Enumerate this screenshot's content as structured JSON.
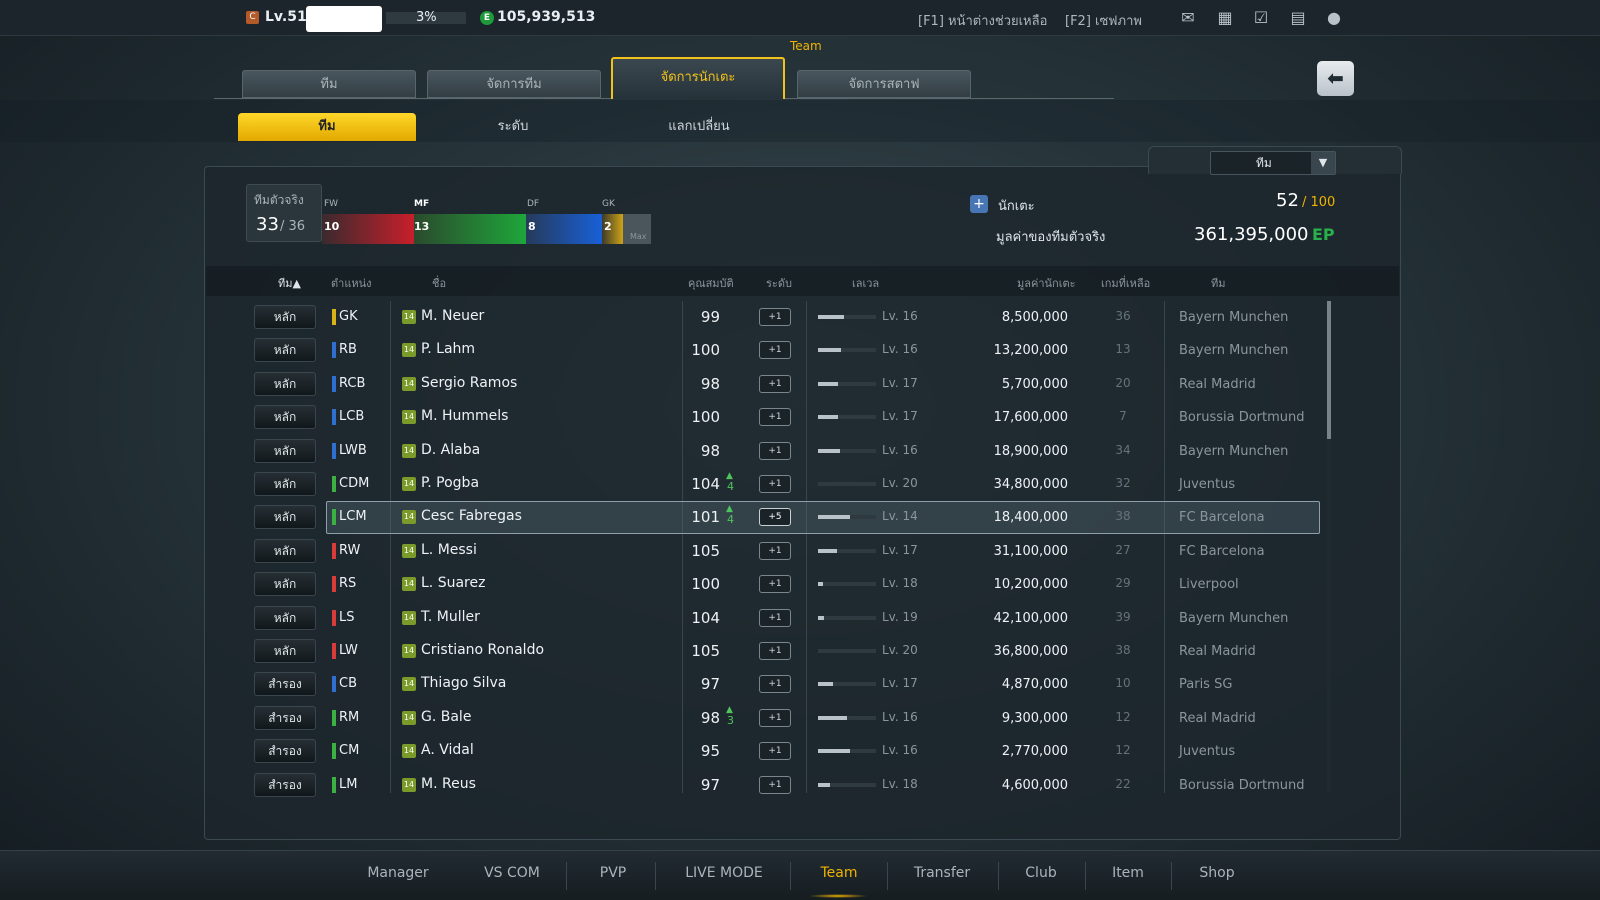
{
  "topbar": {
    "level": "Lv.51",
    "level_icon": "C",
    "exp_percent": "3%",
    "ep_icon": "E",
    "ep_balance": "105,939,513",
    "help_hint": "[F1] หน้าต่างช่วยเหลือ",
    "screenshot_hint": "[F2] เซฟภาพ"
  },
  "header": {
    "section": "Team",
    "tabs": [
      "ทีม",
      "จัดการทีม",
      "จัดการนักเตะ",
      "จัดการสตาฟ"
    ],
    "subtabs": [
      "ทีม",
      "ระดับ",
      "แลกเปลี่ยน"
    ],
    "back": "⬅"
  },
  "filter": {
    "selected": "ทีม",
    "arrow": "▼"
  },
  "summary": {
    "real_team_label": "ทีมตัวจริง",
    "real_count": "33",
    "real_max": "/ 36",
    "positions": [
      {
        "label": "FW",
        "count": "10"
      },
      {
        "label": "MF",
        "count": "13"
      },
      {
        "label": "DF",
        "count": "8"
      },
      {
        "label": "GK",
        "count": "2"
      }
    ],
    "max_label": "Max",
    "players_label": "นักเตะ",
    "players_count": "52",
    "players_max": "/ 100",
    "team_value_label": "มูลค่าของทีมตัวจริง",
    "team_value": "361,395,000",
    "team_value_unit": "EP"
  },
  "table": {
    "headers": {
      "team": "ทีม▲",
      "position": "ตำแหน่ง",
      "name": "ชื่อ",
      "ovr": "คุณสมบัติ",
      "grade": "ระดับ",
      "level": "เลเวล",
      "value": "มูลค่านักเตะ",
      "games": "เกมที่เหลือ",
      "club": "ทีม"
    },
    "rows": [
      {
        "role": "หลัก",
        "pos": "GK",
        "pos_color": "#d9b21a",
        "season": "14",
        "name": "M. Neuer",
        "ovr": "99",
        "boost": "",
        "grade": "+1",
        "lv_fill": 0.45,
        "level": "Lv. 16",
        "value": "8,500,000",
        "games": "36",
        "club": "Bayern Munchen"
      },
      {
        "role": "หลัก",
        "pos": "RB",
        "pos_color": "#2f6fd0",
        "season": "14",
        "name": "P. Lahm",
        "ovr": "100",
        "boost": "",
        "grade": "+1",
        "lv_fill": 0.4,
        "level": "Lv. 16",
        "value": "13,200,000",
        "games": "13",
        "club": "Bayern Munchen"
      },
      {
        "role": "หลัก",
        "pos": "RCB",
        "pos_color": "#2f6fd0",
        "season": "14",
        "name": "Sergio Ramos",
        "ovr": "98",
        "boost": "",
        "grade": "+1",
        "lv_fill": 0.35,
        "level": "Lv. 17",
        "value": "5,700,000",
        "games": "20",
        "club": "Real Madrid"
      },
      {
        "role": "หลัก",
        "pos": "LCB",
        "pos_color": "#2f6fd0",
        "season": "14",
        "name": "M. Hummels",
        "ovr": "100",
        "boost": "",
        "grade": "+1",
        "lv_fill": 0.35,
        "level": "Lv. 17",
        "value": "17,600,000",
        "games": "7",
        "club": "Borussia Dortmund"
      },
      {
        "role": "หลัก",
        "pos": "LWB",
        "pos_color": "#2f6fd0",
        "season": "14",
        "name": "D. Alaba",
        "ovr": "98",
        "boost": "",
        "grade": "+1",
        "lv_fill": 0.38,
        "level": "Lv. 16",
        "value": "18,900,000",
        "games": "34",
        "club": "Bayern Munchen"
      },
      {
        "role": "หลัก",
        "pos": "CDM",
        "pos_color": "#3cb043",
        "season": "14",
        "name": "P. Pogba",
        "ovr": "104",
        "boost": "4",
        "grade": "+1",
        "lv_fill": 0.0,
        "level": "Lv. 20",
        "value": "34,800,000",
        "games": "32",
        "club": "Juventus"
      },
      {
        "role": "หลัก",
        "pos": "LCM",
        "pos_color": "#3cb043",
        "season": "14",
        "name": "Cesc Fabregas",
        "ovr": "101",
        "boost": "4",
        "grade": "+5",
        "lv_fill": 0.55,
        "level": "Lv. 14",
        "value": "18,400,000",
        "games": "38",
        "club": "FC Barcelona",
        "selected": true
      },
      {
        "role": "หลัก",
        "pos": "RW",
        "pos_color": "#d93a3a",
        "season": "14",
        "name": "L. Messi",
        "ovr": "105",
        "boost": "",
        "grade": "+1",
        "lv_fill": 0.33,
        "level": "Lv. 17",
        "value": "31,100,000",
        "games": "27",
        "club": "FC Barcelona"
      },
      {
        "role": "หลัก",
        "pos": "RS",
        "pos_color": "#d93a3a",
        "season": "14",
        "name": "L. Suarez",
        "ovr": "100",
        "boost": "",
        "grade": "+1",
        "lv_fill": 0.08,
        "level": "Lv. 18",
        "value": "10,200,000",
        "games": "29",
        "club": "Liverpool"
      },
      {
        "role": "หลัก",
        "pos": "LS",
        "pos_color": "#d93a3a",
        "season": "14",
        "name": "T. Muller",
        "ovr": "104",
        "boost": "",
        "grade": "+1",
        "lv_fill": 0.1,
        "level": "Lv. 19",
        "value": "42,100,000",
        "games": "39",
        "club": "Bayern Munchen"
      },
      {
        "role": "หลัก",
        "pos": "LW",
        "pos_color": "#d93a3a",
        "season": "14",
        "name": "Cristiano Ronaldo",
        "ovr": "105",
        "boost": "",
        "grade": "+1",
        "lv_fill": 0.0,
        "level": "Lv. 20",
        "value": "36,800,000",
        "games": "38",
        "club": "Real Madrid"
      },
      {
        "role": "สำรอง",
        "pos": "CB",
        "pos_color": "#2f6fd0",
        "season": "14",
        "name": "Thiago Silva",
        "ovr": "97",
        "boost": "",
        "grade": "+1",
        "lv_fill": 0.25,
        "level": "Lv. 17",
        "value": "4,870,000",
        "games": "10",
        "club": "Paris SG"
      },
      {
        "role": "สำรอง",
        "pos": "RM",
        "pos_color": "#3cb043",
        "season": "14",
        "name": "G. Bale",
        "ovr": "98",
        "boost": "3",
        "grade": "+1",
        "lv_fill": 0.5,
        "level": "Lv. 16",
        "value": "9,300,000",
        "games": "12",
        "club": "Real Madrid"
      },
      {
        "role": "สำรอง",
        "pos": "CM",
        "pos_color": "#3cb043",
        "season": "14",
        "name": "A. Vidal",
        "ovr": "95",
        "boost": "",
        "grade": "+1",
        "lv_fill": 0.55,
        "level": "Lv. 16",
        "value": "2,770,000",
        "games": "12",
        "club": "Juventus"
      },
      {
        "role": "สำรอง",
        "pos": "LM",
        "pos_color": "#3cb043",
        "season": "14",
        "name": "M. Reus",
        "ovr": "97",
        "boost": "",
        "grade": "+1",
        "lv_fill": 0.2,
        "level": "Lv. 18",
        "value": "4,600,000",
        "games": "22",
        "club": "Borussia Dortmund"
      }
    ]
  },
  "bottom_nav": [
    "Manager",
    "VS COM",
    "PVP",
    "LIVE MODE",
    "Team",
    "Transfer",
    "Club",
    "Item",
    "Shop"
  ],
  "bottom_active": "Team",
  "icons": {
    "mail": "✉",
    "formation": "▦",
    "calendar": "☑",
    "chat": "▤",
    "profile": "●"
  }
}
